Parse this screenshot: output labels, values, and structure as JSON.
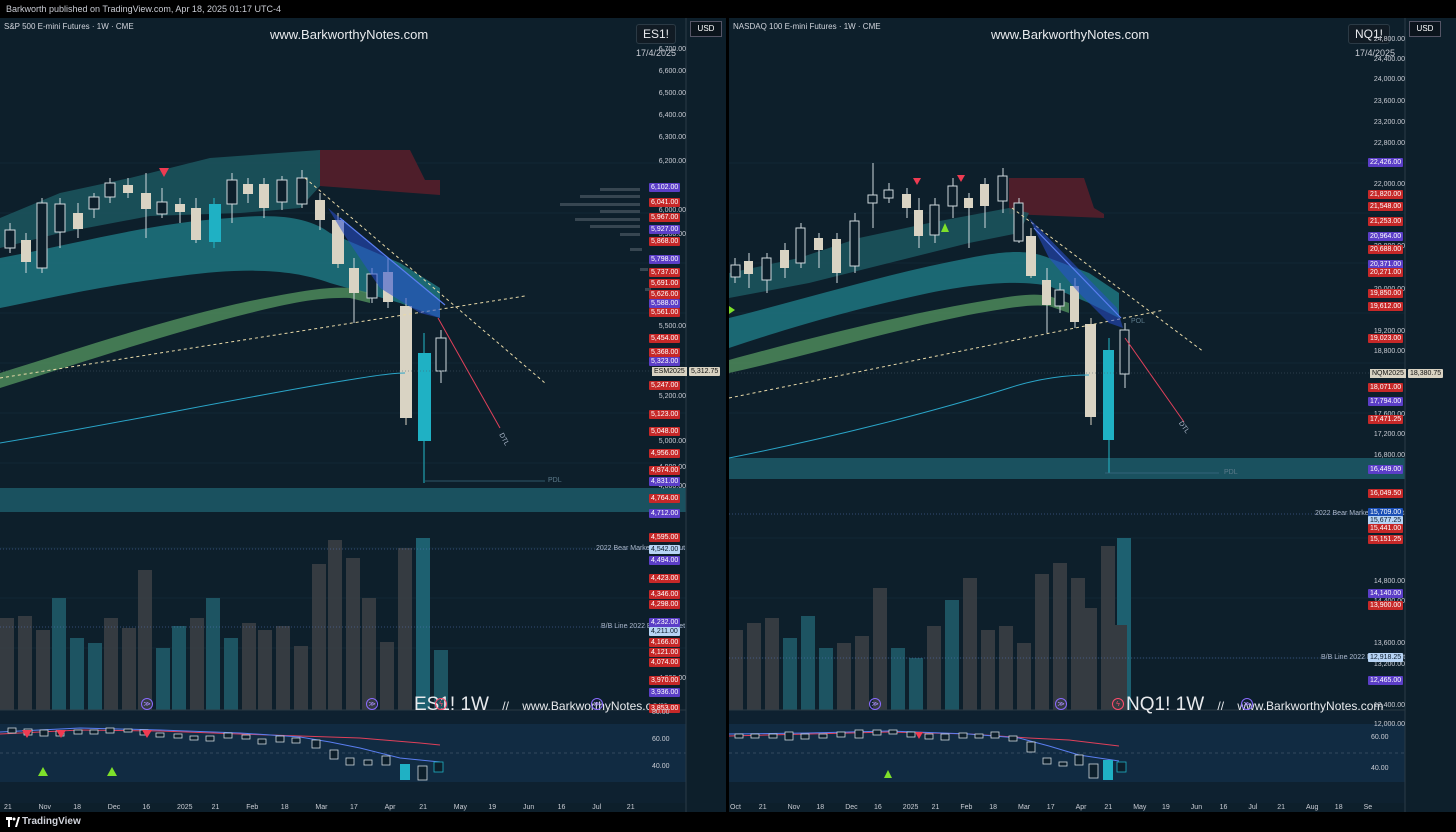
{
  "header": {
    "publish_line": "Barkworth published on TradingView.com, Apr 18, 2025 01:17 UTC-4"
  },
  "footer": {
    "brand": "TradingView"
  },
  "currency": "USD",
  "panels": [
    {
      "symbol_line": "S&P 500 E-mini Futures · 1W · CME",
      "watermark_top": "www.BarkworthyNotes.com",
      "badge": "ES1!",
      "badge_date": "17/4/2025",
      "watermark_bottom": "ES1! 1W",
      "watermark_bottom_sep": "//",
      "watermark_bottom_site": "www.BarkworthyNotes.com",
      "contract_tag": "ESM2025",
      "current_price": "5,312.75",
      "line_labels": {
        "dtl": "DTL",
        "pdl": "PDL",
        "bear_break": "2022 Bear Market Break Out",
        "bb_line": "B/B Line 2022 Bear Market"
      },
      "axis_ticks": [
        "6,700.00",
        "6,600.00",
        "6,500.00",
        "6,400.00",
        "6,300.00",
        "6,200.00",
        "6,000.00",
        "5,900.00",
        "5,500.00",
        "5,200.00",
        "5,000.00",
        "4,900.00",
        "4,800.00",
        "4,000.00"
      ],
      "price_labels": [
        {
          "v": "6,102.00",
          "c": "purple"
        },
        {
          "v": "6,041.00",
          "c": "red"
        },
        {
          "v": "5,967.00",
          "c": "red"
        },
        {
          "v": "5,927.00",
          "c": "purple"
        },
        {
          "v": "5,868.00",
          "c": "red"
        },
        {
          "v": "5,798.00",
          "c": "purple"
        },
        {
          "v": "5,737.00",
          "c": "red"
        },
        {
          "v": "5,691.00",
          "c": "red"
        },
        {
          "v": "5,626.00",
          "c": "red"
        },
        {
          "v": "5,588.00",
          "c": "purple"
        },
        {
          "v": "5,561.00",
          "c": "red"
        },
        {
          "v": "5,454.00",
          "c": "red"
        },
        {
          "v": "5,368.00",
          "c": "red"
        },
        {
          "v": "5,323.00",
          "c": "purple"
        },
        {
          "v": "5,247.00",
          "c": "red"
        },
        {
          "v": "5,123.00",
          "c": "red"
        },
        {
          "v": "5,048.00",
          "c": "red"
        },
        {
          "v": "4,956.00",
          "c": "red"
        },
        {
          "v": "4,874.00",
          "c": "red"
        },
        {
          "v": "4,831.00",
          "c": "purple"
        },
        {
          "v": "4,764.00",
          "c": "red"
        },
        {
          "v": "4,712.00",
          "c": "purple"
        },
        {
          "v": "4,595.00",
          "c": "red"
        },
        {
          "v": "4,542.00",
          "c": "light"
        },
        {
          "v": "4,494.00",
          "c": "purple"
        },
        {
          "v": "4,423.00",
          "c": "red"
        },
        {
          "v": "4,346.00",
          "c": "red"
        },
        {
          "v": "4,298.00",
          "c": "red"
        },
        {
          "v": "4,232.00",
          "c": "purple"
        },
        {
          "v": "4,211.00",
          "c": "light"
        },
        {
          "v": "4,166.00",
          "c": "red"
        },
        {
          "v": "4,121.00",
          "c": "red"
        },
        {
          "v": "4,074.00",
          "c": "red"
        },
        {
          "v": "3,970.00",
          "c": "red"
        },
        {
          "v": "3,936.00",
          "c": "purple"
        },
        {
          "v": "3,853.00",
          "c": "red"
        }
      ],
      "osc_ticks": [
        "80.00",
        "60.00",
        "40.00"
      ],
      "time_ticks": [
        "21",
        "Nov",
        "18",
        "Dec",
        "16",
        "2025",
        "21",
        "Feb",
        "18",
        "Mar",
        "17",
        "Apr",
        "21",
        "May",
        "19",
        "Jun",
        "16",
        "Jul",
        "21"
      ]
    },
    {
      "symbol_line": "NASDAQ 100 E-mini Futures · 1W · CME",
      "watermark_top": "www.BarkworthyNotes.com",
      "badge": "NQ1!",
      "badge_date": "17/4/2025",
      "watermark_bottom": "NQ1! 1W",
      "watermark_bottom_sep": "//",
      "watermark_bottom_site": "www.BarkworthyNotes.com",
      "contract_tag": "NQM2025",
      "current_price": "18,380.75",
      "line_labels": {
        "dtl": "DTL",
        "pdl": "PDL",
        "pol": "POL",
        "bear_break": "2022 Bear Market Break Out",
        "bb_line": "B/B Line 2022 Bear Market"
      },
      "axis_ticks": [
        "24,800.00",
        "24,400.00",
        "24,000.00",
        "23,600.00",
        "23,200.00",
        "22,800.00",
        "22,000.00",
        "20,800.00",
        "20,000.00",
        "19,200.00",
        "18,800.00",
        "17,600.00",
        "17,200.00",
        "16,800.00",
        "14,800.00",
        "14,400.00",
        "13,600.00",
        "13,200.00",
        "12,400.00",
        "12,000.00"
      ],
      "price_labels": [
        {
          "v": "22,426.00",
          "c": "purple"
        },
        {
          "v": "21,820.00",
          "c": "red"
        },
        {
          "v": "21,548.00",
          "c": "red"
        },
        {
          "v": "21,253.00",
          "c": "red"
        },
        {
          "v": "20,964.00",
          "c": "purple"
        },
        {
          "v": "20,688.00",
          "c": "red"
        },
        {
          "v": "20,371.00",
          "c": "purple"
        },
        {
          "v": "20,271.00",
          "c": "red"
        },
        {
          "v": "19,850.00",
          "c": "red"
        },
        {
          "v": "19,612.00",
          "c": "red"
        },
        {
          "v": "19,023.00",
          "c": "red"
        },
        {
          "v": "18,071.00",
          "c": "red"
        },
        {
          "v": "17,794.00",
          "c": "purple"
        },
        {
          "v": "17,471.25",
          "c": "red"
        },
        {
          "v": "16,449.00",
          "c": "purple"
        },
        {
          "v": "16,049.50",
          "c": "red"
        },
        {
          "v": "15,709.00",
          "c": "blue"
        },
        {
          "v": "15,677.25",
          "c": "light"
        },
        {
          "v": "15,441.00",
          "c": "red"
        },
        {
          "v": "15,151.25",
          "c": "red"
        },
        {
          "v": "14,140.00",
          "c": "purple"
        },
        {
          "v": "13,900.00",
          "c": "red"
        },
        {
          "v": "12,918.25",
          "c": "light"
        },
        {
          "v": "12,465.00",
          "c": "purple"
        }
      ],
      "osc_ticks": [
        "60.00",
        "40.00"
      ],
      "time_ticks": [
        "Oct",
        "21",
        "Nov",
        "18",
        "Dec",
        "16",
        "2025",
        "21",
        "Feb",
        "18",
        "Mar",
        "17",
        "Apr",
        "21",
        "May",
        "19",
        "Jun",
        "16",
        "Jul",
        "21",
        "Aug",
        "18",
        "Se"
      ]
    }
  ]
}
